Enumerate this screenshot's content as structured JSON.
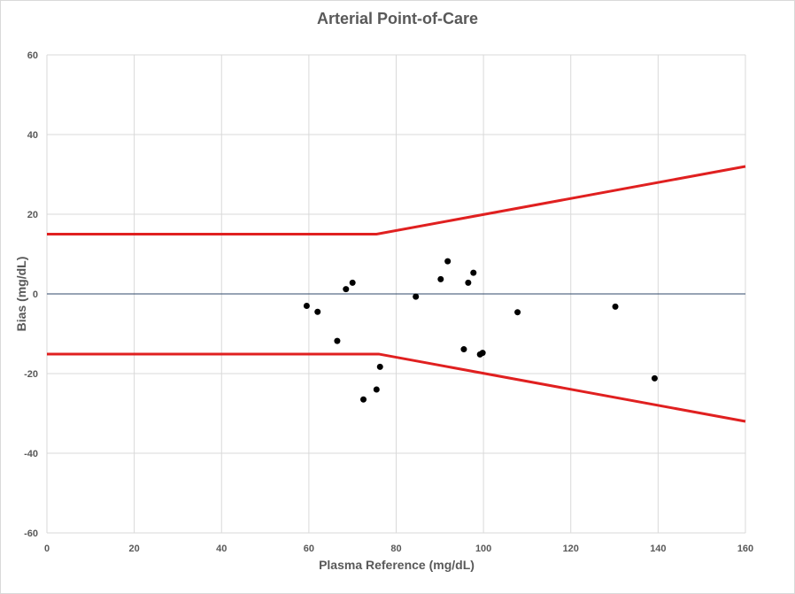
{
  "chart_data": {
    "type": "scatter",
    "title": "Arterial Point-of-Care",
    "xlabel": "Plasma Reference (mg/dL)",
    "ylabel": "Bias (mg/dL)",
    "xlim": [
      0,
      160
    ],
    "ylim": [
      -60,
      60
    ],
    "x_ticks": [
      0,
      20,
      40,
      60,
      80,
      100,
      120,
      140,
      160
    ],
    "y_ticks": [
      -60,
      -40,
      -20,
      0,
      20,
      40,
      60
    ],
    "x_tick_labels": [
      "0",
      "20",
      "40",
      "60",
      "80",
      "100",
      "120",
      "140",
      "160"
    ],
    "y_tick_labels": [
      "-60",
      "-40",
      "-20",
      "0",
      "20",
      "40",
      "60"
    ],
    "grid": true,
    "legend": "none",
    "points": [
      {
        "x": 59.5,
        "y": -3
      },
      {
        "x": 62,
        "y": -4.5
      },
      {
        "x": 66.5,
        "y": -11.8
      },
      {
        "x": 68.5,
        "y": 1.2
      },
      {
        "x": 70,
        "y": 2.8
      },
      {
        "x": 72.5,
        "y": -26.5
      },
      {
        "x": 75.5,
        "y": -24
      },
      {
        "x": 76.3,
        "y": -18.3
      },
      {
        "x": 84.5,
        "y": -0.7
      },
      {
        "x": 90.2,
        "y": 3.7
      },
      {
        "x": 91.8,
        "y": 8.2
      },
      {
        "x": 95.5,
        "y": -13.9
      },
      {
        "x": 96.5,
        "y": 2.8
      },
      {
        "x": 97.7,
        "y": 5.3
      },
      {
        "x": 99.2,
        "y": -15.2
      },
      {
        "x": 99.8,
        "y": -14.8
      },
      {
        "x": 107.8,
        "y": -4.6
      },
      {
        "x": 130.2,
        "y": -3.2
      },
      {
        "x": 139.2,
        "y": -21.2
      }
    ],
    "limit_lines": [
      {
        "points": [
          [
            0,
            15
          ],
          [
            75.5,
            15
          ],
          [
            160,
            32
          ]
        ]
      },
      {
        "points": [
          [
            0,
            -15.1
          ],
          [
            76,
            -15.1
          ],
          [
            160,
            -32
          ]
        ]
      }
    ],
    "reference_line": {
      "y": 0
    },
    "colors": {
      "points": "#000000",
      "limits": "#e02020",
      "zero_line": "#2f4a6b",
      "grid": "#d9d9d9",
      "text": "#595959"
    }
  }
}
